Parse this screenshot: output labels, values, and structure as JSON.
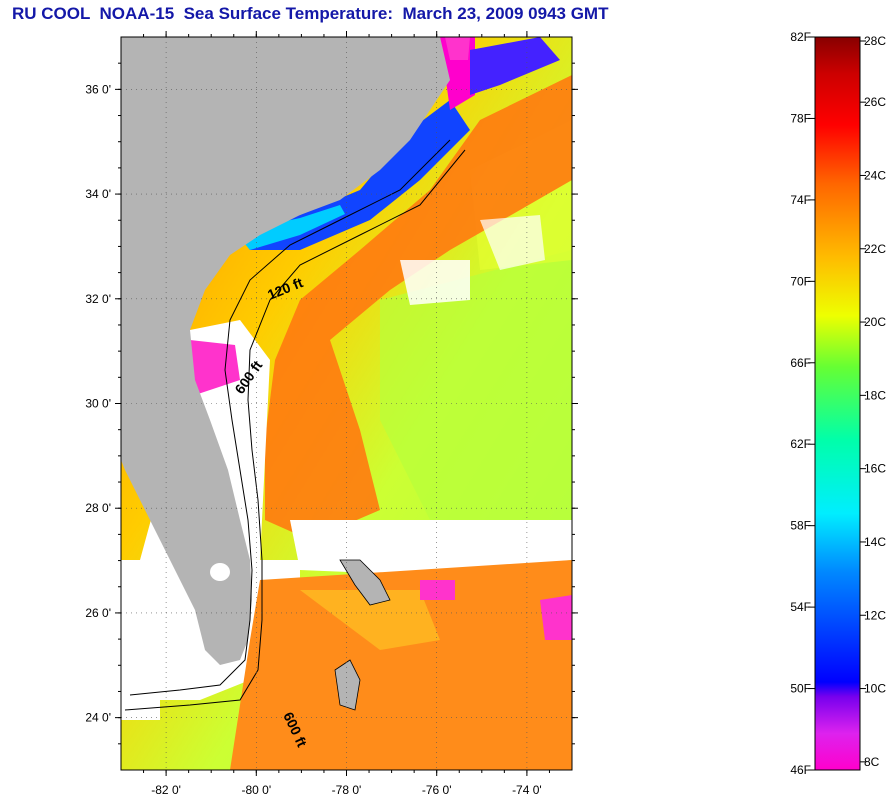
{
  "title": "RU COOL  NOAA-15  Sea Surface Temperature:  March 23, 2009 0943 GMT",
  "map": {
    "lat_range": [
      23.0,
      37.0
    ],
    "lon_range": [
      -83.0,
      -73.0
    ],
    "lat_ticks": [
      "36 0'",
      "34 0'",
      "32 0'",
      "30 0'",
      "28 0'",
      "26 0'",
      "24 0'"
    ],
    "lon_ticks": [
      "-82 0'",
      "-80 0'",
      "-78 0'",
      "-76 0'",
      "-74 0'"
    ],
    "contour_labels": [
      "120 ft",
      "600 ft",
      "600 ft"
    ],
    "land_color": "#b4b4b4",
    "cloud_color": "#ffffff",
    "grid": "dotted"
  },
  "colorbar": {
    "fahrenheit_labels": [
      "82F",
      "78F",
      "74F",
      "70F",
      "66F",
      "62F",
      "58F",
      "54F",
      "50F",
      "46F"
    ],
    "celsius_labels": [
      "28C",
      "26C",
      "24C",
      "22C",
      "20C",
      "18C",
      "16C",
      "14C",
      "12C",
      "10C",
      "8C"
    ],
    "stops": [
      "#ff00cc",
      "#8800ff",
      "#0000ff",
      "#0088ff",
      "#00eeff",
      "#00ffaa",
      "#66ff33",
      "#eeff00",
      "#ffbb00",
      "#ff6600",
      "#ff0000",
      "#cc0000",
      "#880000"
    ]
  }
}
